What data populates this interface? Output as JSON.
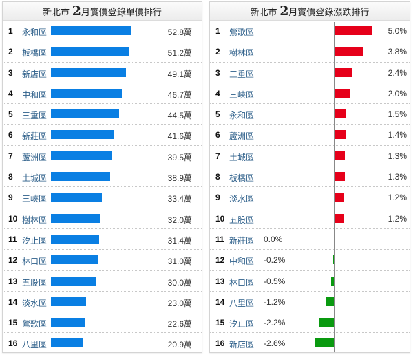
{
  "left_panel": {
    "title_prefix": "新北市",
    "title_month": "2",
    "title_suffix": "月實價登錄單價排行",
    "unit": "萬",
    "bar_color": "#0a7fe3"
  },
  "right_panel": {
    "title_prefix": "新北市",
    "title_month": "2",
    "title_suffix": "月實價登錄漲跌排行",
    "positive_color": "#e6001a",
    "negative_color": "#0a9a10"
  },
  "chart_data": [
    {
      "type": "bar",
      "orientation": "horizontal",
      "title": "新北市 2月實價登錄單價排行",
      "unit": "萬",
      "categories": [
        "永和區",
        "板橋區",
        "新店區",
        "中和區",
        "三重區",
        "新莊區",
        "蘆洲區",
        "土城區",
        "三峽區",
        "樹林區",
        "汐止區",
        "林口區",
        "五股區",
        "淡水區",
        "鶯歌區",
        "八里區"
      ],
      "ranks": [
        1,
        2,
        3,
        4,
        5,
        6,
        7,
        8,
        9,
        10,
        11,
        12,
        13,
        14,
        15,
        16
      ],
      "values": [
        52.8,
        51.2,
        49.1,
        46.7,
        44.5,
        41.6,
        39.5,
        38.9,
        33.4,
        32.0,
        31.4,
        31.0,
        30.0,
        23.0,
        22.6,
        20.9
      ],
      "labels": [
        "52.8萬",
        "51.2萬",
        "49.1萬",
        "46.7萬",
        "44.5萬",
        "41.6萬",
        "39.5萬",
        "38.9萬",
        "33.4萬",
        "32.0萬",
        "31.4萬",
        "31.0萬",
        "30.0萬",
        "23.0萬",
        "22.6萬",
        "20.9萬"
      ]
    },
    {
      "type": "bar",
      "orientation": "horizontal-diverging",
      "title": "新北市 2月實價登錄漲跌排行",
      "unit": "%",
      "categories": [
        "鶯歌區",
        "樹林區",
        "三重區",
        "三峽區",
        "永和區",
        "蘆洲區",
        "土城區",
        "板橋區",
        "淡水區",
        "五股區",
        "新莊區",
        "中和區",
        "林口區",
        "八里區",
        "汐止區",
        "新店區"
      ],
      "ranks": [
        1,
        2,
        3,
        4,
        5,
        6,
        7,
        8,
        9,
        10,
        11,
        12,
        13,
        14,
        15,
        16
      ],
      "values": [
        5.0,
        3.8,
        2.4,
        2.0,
        1.5,
        1.4,
        1.3,
        1.3,
        1.2,
        1.2,
        0.0,
        -0.2,
        -0.5,
        -1.2,
        -2.2,
        -2.6
      ],
      "labels": [
        "5.0%",
        "3.8%",
        "2.4%",
        "2.0%",
        "1.5%",
        "1.4%",
        "1.3%",
        "1.3%",
        "1.2%",
        "1.2%",
        "0.0%",
        "-0.2%",
        "-0.5%",
        "-1.2%",
        "-2.2%",
        "-2.6%"
      ]
    }
  ]
}
